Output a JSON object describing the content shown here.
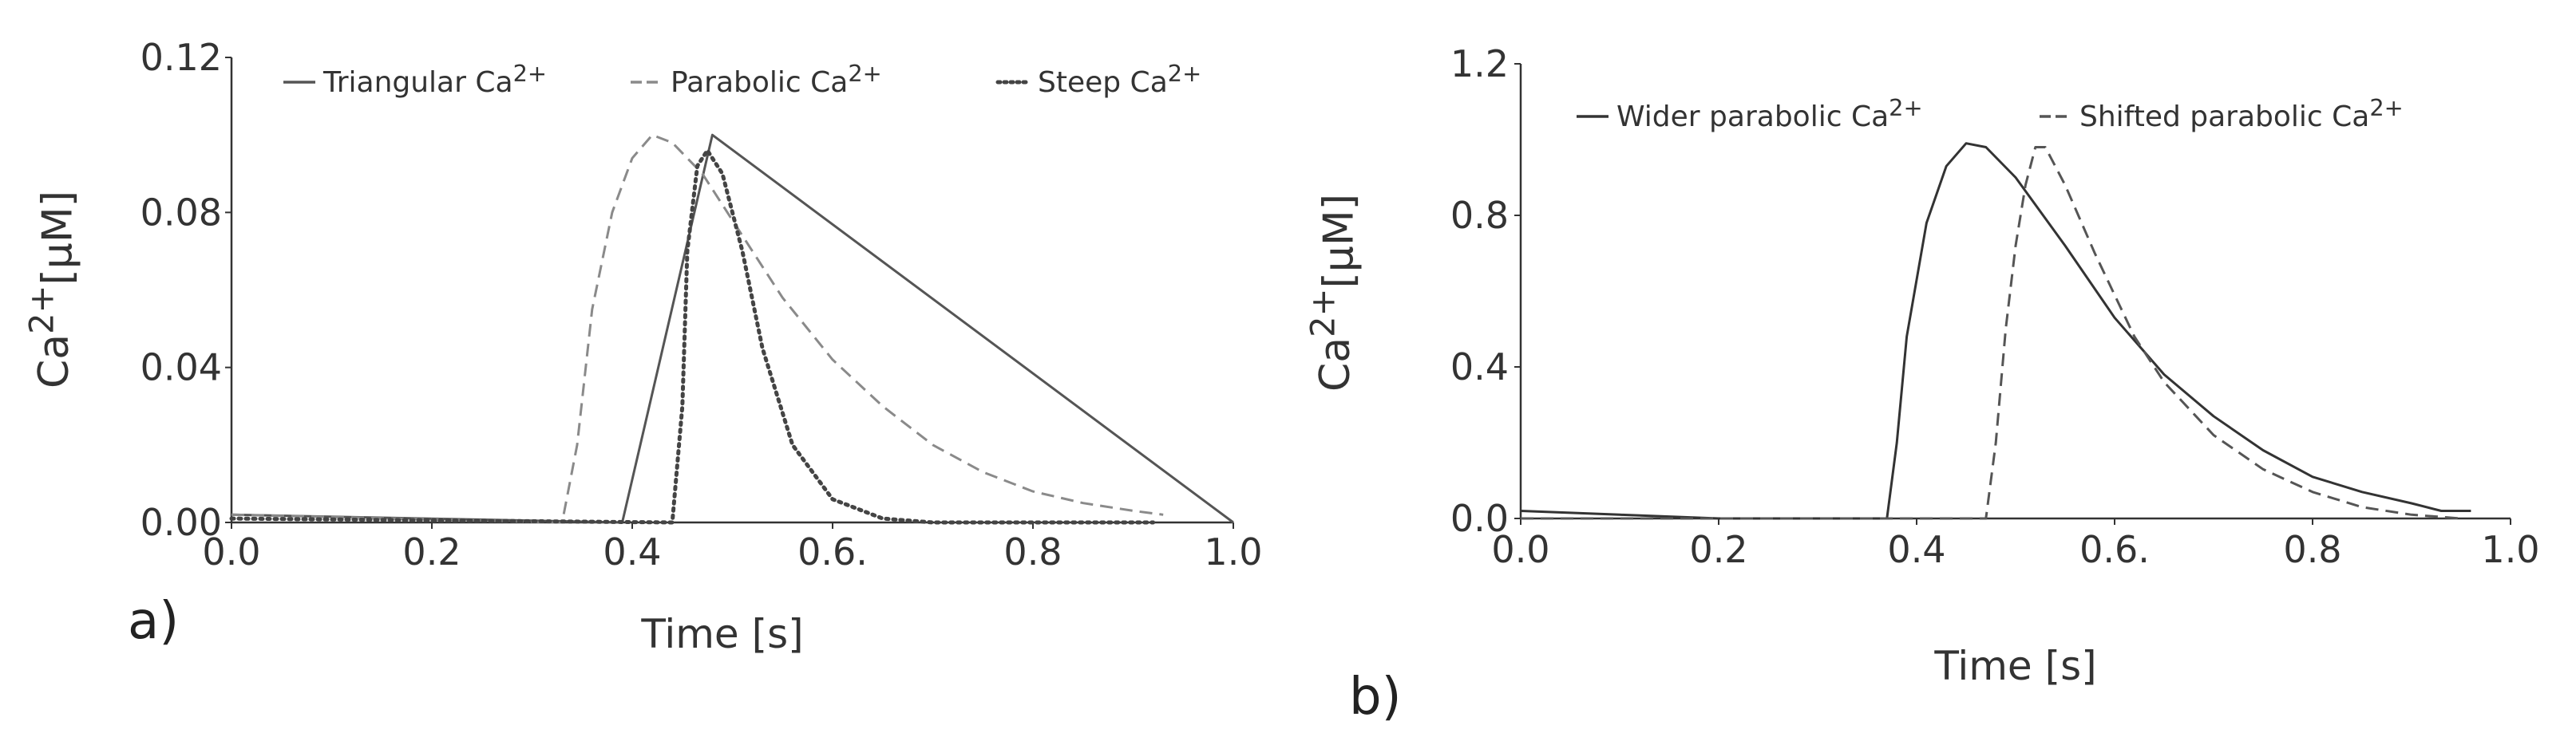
{
  "chart_data": [
    {
      "type": "line",
      "panel_label": "a)",
      "xlabel": "Time [s]",
      "ylabel_base": "Ca",
      "ylabel_sup": "2+",
      "ylabel_unit": "[μM]",
      "xlim": [
        0.0,
        1.0
      ],
      "ylim": [
        0.0,
        0.12
      ],
      "xticks": [
        {
          "v": 0.0,
          "label": "0.0"
        },
        {
          "v": 0.2,
          "label": "0.2"
        },
        {
          "v": 0.4,
          "label": "0.4"
        },
        {
          "v": 0.6,
          "label": "0.6."
        },
        {
          "v": 0.8,
          "label": "0.8"
        },
        {
          "v": 1.0,
          "label": "1.0"
        }
      ],
      "yticks": [
        {
          "v": 0.0,
          "label": "0.00"
        },
        {
          "v": 0.04,
          "label": "0.04"
        },
        {
          "v": 0.08,
          "label": "0.08"
        },
        {
          "v": 0.12,
          "label": "0.12"
        }
      ],
      "legend_placement": "top",
      "series": [
        {
          "name": "Triangular Ca",
          "name_sup": "2+",
          "style": "solid",
          "color": "#555555",
          "points": [
            [
              0.0,
              0.002
            ],
            [
              0.39,
              0.0
            ],
            [
              0.48,
              0.1
            ],
            [
              1.0,
              0.0
            ]
          ]
        },
        {
          "name": "Parabolic Ca",
          "name_sup": "2+",
          "style": "dashed",
          "color": "#8a8a8a",
          "points": [
            [
              0.0,
              0.002
            ],
            [
              0.33,
              0.0
            ],
            [
              0.345,
              0.02
            ],
            [
              0.36,
              0.055
            ],
            [
              0.38,
              0.08
            ],
            [
              0.4,
              0.094
            ],
            [
              0.42,
              0.1
            ],
            [
              0.44,
              0.098
            ],
            [
              0.47,
              0.09
            ],
            [
              0.5,
              0.078
            ],
            [
              0.55,
              0.058
            ],
            [
              0.6,
              0.042
            ],
            [
              0.65,
              0.03
            ],
            [
              0.7,
              0.02
            ],
            [
              0.75,
              0.013
            ],
            [
              0.8,
              0.008
            ],
            [
              0.85,
              0.005
            ],
            [
              0.9,
              0.003
            ],
            [
              0.93,
              0.002
            ]
          ]
        },
        {
          "name": "Steep Ca",
          "name_sup": "2+",
          "style": "dotted",
          "color": "#444444",
          "points": [
            [
              0.0,
              0.001
            ],
            [
              0.44,
              0.0
            ],
            [
              0.45,
              0.03
            ],
            [
              0.455,
              0.07
            ],
            [
              0.465,
              0.092
            ],
            [
              0.475,
              0.096
            ],
            [
              0.49,
              0.09
            ],
            [
              0.51,
              0.07
            ],
            [
              0.53,
              0.045
            ],
            [
              0.56,
              0.02
            ],
            [
              0.6,
              0.006
            ],
            [
              0.65,
              0.001
            ],
            [
              0.7,
              0.0
            ],
            [
              0.92,
              0.0
            ]
          ]
        }
      ]
    },
    {
      "type": "line",
      "panel_label": "b)",
      "xlabel": "Time [s]",
      "ylabel_base": "Ca",
      "ylabel_sup": "2+",
      "ylabel_unit": "[μM]",
      "xlim": [
        0.0,
        1.0
      ],
      "ylim": [
        0.0,
        1.2
      ],
      "xticks": [
        {
          "v": 0.0,
          "label": "0.0"
        },
        {
          "v": 0.2,
          "label": "0.2"
        },
        {
          "v": 0.4,
          "label": "0.4"
        },
        {
          "v": 0.6,
          "label": "0.6."
        },
        {
          "v": 0.8,
          "label": "0.8"
        },
        {
          "v": 1.0,
          "label": "1.0"
        }
      ],
      "yticks": [
        {
          "v": 0.0,
          "label": "0.0"
        },
        {
          "v": 0.4,
          "label": "0.4"
        },
        {
          "v": 0.8,
          "label": "0.8"
        },
        {
          "v": 1.2,
          "label": "1.2"
        }
      ],
      "legend_placement": "top",
      "series": [
        {
          "name": "Wider parabolic Ca",
          "name_sup": "2+",
          "style": "solid",
          "color": "#333333",
          "points": [
            [
              0.0,
              0.02
            ],
            [
              0.1,
              0.01
            ],
            [
              0.2,
              0.0
            ],
            [
              0.37,
              0.0
            ],
            [
              0.38,
              0.2
            ],
            [
              0.39,
              0.48
            ],
            [
              0.41,
              0.78
            ],
            [
              0.43,
              0.93
            ],
            [
              0.45,
              0.99
            ],
            [
              0.47,
              0.98
            ],
            [
              0.5,
              0.9
            ],
            [
              0.55,
              0.72
            ],
            [
              0.6,
              0.53
            ],
            [
              0.65,
              0.38
            ],
            [
              0.7,
              0.27
            ],
            [
              0.75,
              0.18
            ],
            [
              0.8,
              0.11
            ],
            [
              0.85,
              0.07
            ],
            [
              0.9,
              0.04
            ],
            [
              0.93,
              0.02
            ],
            [
              0.96,
              0.02
            ]
          ]
        },
        {
          "name": "Shifted parabolic Ca",
          "name_sup": "2+",
          "style": "dashed",
          "color": "#555555",
          "points": [
            [
              0.0,
              0.0
            ],
            [
              0.47,
              0.0
            ],
            [
              0.48,
              0.2
            ],
            [
              0.49,
              0.5
            ],
            [
              0.5,
              0.72
            ],
            [
              0.51,
              0.88
            ],
            [
              0.52,
              0.98
            ],
            [
              0.53,
              0.98
            ],
            [
              0.55,
              0.88
            ],
            [
              0.58,
              0.7
            ],
            [
              0.62,
              0.48
            ],
            [
              0.65,
              0.36
            ],
            [
              0.7,
              0.22
            ],
            [
              0.75,
              0.13
            ],
            [
              0.8,
              0.07
            ],
            [
              0.85,
              0.03
            ],
            [
              0.9,
              0.01
            ],
            [
              0.95,
              0.0
            ]
          ]
        }
      ]
    }
  ]
}
